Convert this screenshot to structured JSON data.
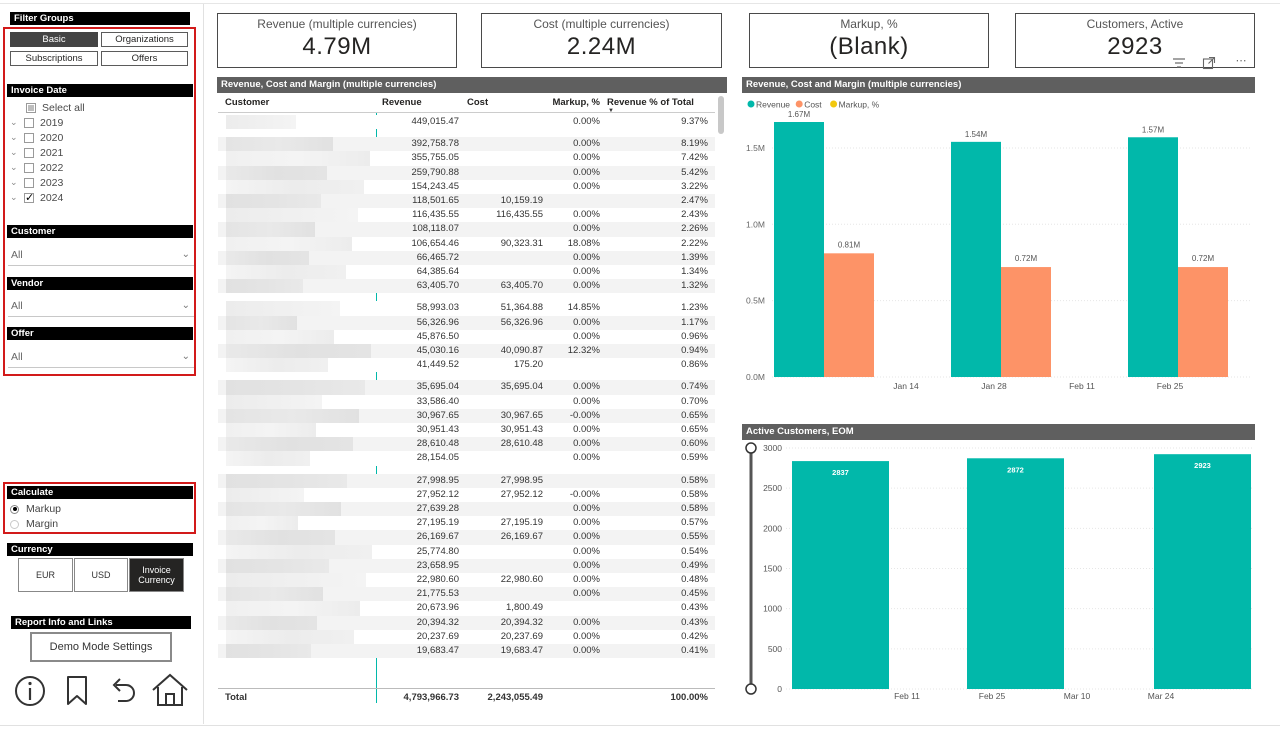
{
  "filter_groups": {
    "title": "Filter Groups",
    "buttons": [
      {
        "label": "Basic",
        "active": true
      },
      {
        "label": "Organizations",
        "active": false
      },
      {
        "label": "Subscriptions",
        "active": false
      },
      {
        "label": "Offers",
        "active": false
      }
    ]
  },
  "invoice_date": {
    "title": "Invoice Date",
    "select_all": "Select all",
    "years": [
      {
        "label": "2019",
        "checked": false
      },
      {
        "label": "2020",
        "checked": false
      },
      {
        "label": "2021",
        "checked": false
      },
      {
        "label": "2022",
        "checked": false
      },
      {
        "label": "2023",
        "checked": false
      },
      {
        "label": "2024",
        "checked": true
      }
    ]
  },
  "customer_filter": {
    "title": "Customer",
    "value": "All"
  },
  "vendor_filter": {
    "title": "Vendor",
    "value": "All"
  },
  "offer_filter": {
    "title": "Offer",
    "value": "All"
  },
  "calculate": {
    "title": "Calculate",
    "options": [
      {
        "label": "Markup",
        "selected": true
      },
      {
        "label": "Margin",
        "selected": false
      }
    ]
  },
  "currency": {
    "title": "Currency",
    "buttons": [
      {
        "label": "EUR",
        "active": false
      },
      {
        "label": "USD",
        "active": false
      },
      {
        "label": "Invoice Currency",
        "active": true
      }
    ]
  },
  "report_info": {
    "title": "Report Info and Links",
    "demo_button": "Demo Mode Settings",
    "icons": [
      "info-icon",
      "bookmark-icon",
      "back-arrow-icon",
      "home-icon"
    ]
  },
  "cards": [
    {
      "label": "Revenue (multiple currencies)",
      "value": "4.79M"
    },
    {
      "label": "Cost (multiple currencies)",
      "value": "2.24M"
    },
    {
      "label": "Markup, %",
      "value": "(Blank)"
    },
    {
      "label": "Customers, Active",
      "value": "2923"
    }
  ],
  "table": {
    "title": "Revenue, Cost and Margin (multiple currencies)",
    "columns": [
      "Customer",
      "Revenue",
      "Cost",
      "Markup, %",
      "Revenue % of Total"
    ],
    "rows": [
      [
        "",
        "449,015.47",
        "",
        "0.00%",
        "9.37%"
      ],
      [
        "",
        "392,758.78",
        "",
        "0.00%",
        "8.19%"
      ],
      [
        "",
        "355,755.05",
        "",
        "0.00%",
        "7.42%"
      ],
      [
        "",
        "259,790.88",
        "",
        "0.00%",
        "5.42%"
      ],
      [
        "",
        "154,243.45",
        "",
        "0.00%",
        "3.22%"
      ],
      [
        "",
        "118,501.65",
        "10,159.19",
        "",
        "2.47%"
      ],
      [
        "",
        "116,435.55",
        "116,435.55",
        "0.00%",
        "2.43%"
      ],
      [
        "",
        "108,118.07",
        "",
        "0.00%",
        "2.26%"
      ],
      [
        "",
        "106,654.46",
        "90,323.31",
        "18.08%",
        "2.22%"
      ],
      [
        "",
        "66,465.72",
        "",
        "0.00%",
        "1.39%"
      ],
      [
        "",
        "64,385.64",
        "",
        "0.00%",
        "1.34%"
      ],
      [
        "",
        "63,405.70",
        "63,405.70",
        "0.00%",
        "1.32%"
      ],
      [
        "",
        "58,993.03",
        "51,364.88",
        "14.85%",
        "1.23%"
      ],
      [
        "",
        "56,326.96",
        "56,326.96",
        "0.00%",
        "1.17%"
      ],
      [
        "",
        "45,876.50",
        "",
        "0.00%",
        "0.96%"
      ],
      [
        "",
        "45,030.16",
        "40,090.87",
        "12.32%",
        "0.94%"
      ],
      [
        "",
        "41,449.52",
        "175.20",
        "",
        "0.86%"
      ],
      [
        "",
        "35,695.04",
        "35,695.04",
        "0.00%",
        "0.74%"
      ],
      [
        "",
        "33,586.40",
        "",
        "0.00%",
        "0.70%"
      ],
      [
        "",
        "30,967.65",
        "30,967.65",
        "-0.00%",
        "0.65%"
      ],
      [
        "",
        "30,951.43",
        "30,951.43",
        "0.00%",
        "0.65%"
      ],
      [
        "",
        "28,610.48",
        "28,610.48",
        "0.00%",
        "0.60%"
      ],
      [
        "",
        "28,154.05",
        "",
        "0.00%",
        "0.59%"
      ],
      [
        "",
        "27,998.95",
        "27,998.95",
        "",
        "0.58%"
      ],
      [
        "",
        "27,952.12",
        "27,952.12",
        "-0.00%",
        "0.58%"
      ],
      [
        "",
        "27,639.28",
        "",
        "0.00%",
        "0.58%"
      ],
      [
        "",
        "27,195.19",
        "27,195.19",
        "0.00%",
        "0.57%"
      ],
      [
        "",
        "26,169.67",
        "26,169.67",
        "0.00%",
        "0.55%"
      ],
      [
        "",
        "25,774.80",
        "",
        "0.00%",
        "0.54%"
      ],
      [
        "",
        "23,658.95",
        "",
        "0.00%",
        "0.49%"
      ],
      [
        "",
        "22,980.60",
        "22,980.60",
        "0.00%",
        "0.48%"
      ],
      [
        "",
        "21,775.53",
        "",
        "0.00%",
        "0.45%"
      ],
      [
        "",
        "20,673.96",
        "1,800.49",
        "",
        "0.43%"
      ],
      [
        "",
        "20,394.32",
        "20,394.32",
        "0.00%",
        "0.43%"
      ],
      [
        "",
        "20,237.69",
        "20,237.69",
        "0.00%",
        "0.42%"
      ],
      [
        "",
        "19,683.47",
        "19,683.47",
        "0.00%",
        "0.41%"
      ]
    ],
    "total": [
      "Total",
      "4,793,966.73",
      "2,243,055.49",
      "",
      "100.00%"
    ]
  },
  "chart_data": [
    {
      "type": "bar",
      "title": "Revenue, Cost and Margin (multiple currencies)",
      "legend": [
        "Revenue",
        "Cost",
        "Markup, %"
      ],
      "legend_position": "top-left",
      "colors": {
        "Revenue": "#01B8AA",
        "Cost": "#FD9367",
        "Markup, %": "#F2C80F"
      },
      "categories": [
        "Jan 14",
        "Jan 28",
        "Feb 11",
        "Feb 25"
      ],
      "x_tick_labels": [
        "Jan 14",
        "Jan 28",
        "Feb 11",
        "Feb 25"
      ],
      "series": [
        {
          "name": "Revenue",
          "values": [
            1.67,
            1.54,
            null,
            1.57
          ],
          "labels": [
            "1.67M",
            "1.54M",
            "",
            "1.57M"
          ]
        },
        {
          "name": "Cost",
          "values": [
            0.81,
            0.72,
            null,
            0.72
          ],
          "labels": [
            "0.81M",
            "0.72M",
            "",
            "0.72M"
          ]
        }
      ],
      "y_ticks": [
        "0.0M",
        "0.5M",
        "1.0M",
        "1.5M"
      ],
      "ylim": [
        0,
        1.67
      ],
      "grid": true
    },
    {
      "type": "bar",
      "title": "Active Customers, EOM",
      "color": "#01B8AA",
      "x_tick_labels": [
        "Feb 11",
        "Feb 25",
        "Mar 10",
        "Mar 24"
      ],
      "bars": [
        {
          "value": 2837,
          "label": "2837"
        },
        {
          "value": 2872,
          "label": "2872"
        },
        {
          "value": 2923,
          "label": "2923"
        }
      ],
      "y_ticks": [
        "0",
        "500",
        "1000",
        "1500",
        "2000",
        "2500",
        "3000"
      ],
      "ylim": [
        0,
        3000
      ],
      "slider_labels": [
        "3000",
        "0"
      ],
      "grid": true
    }
  ]
}
